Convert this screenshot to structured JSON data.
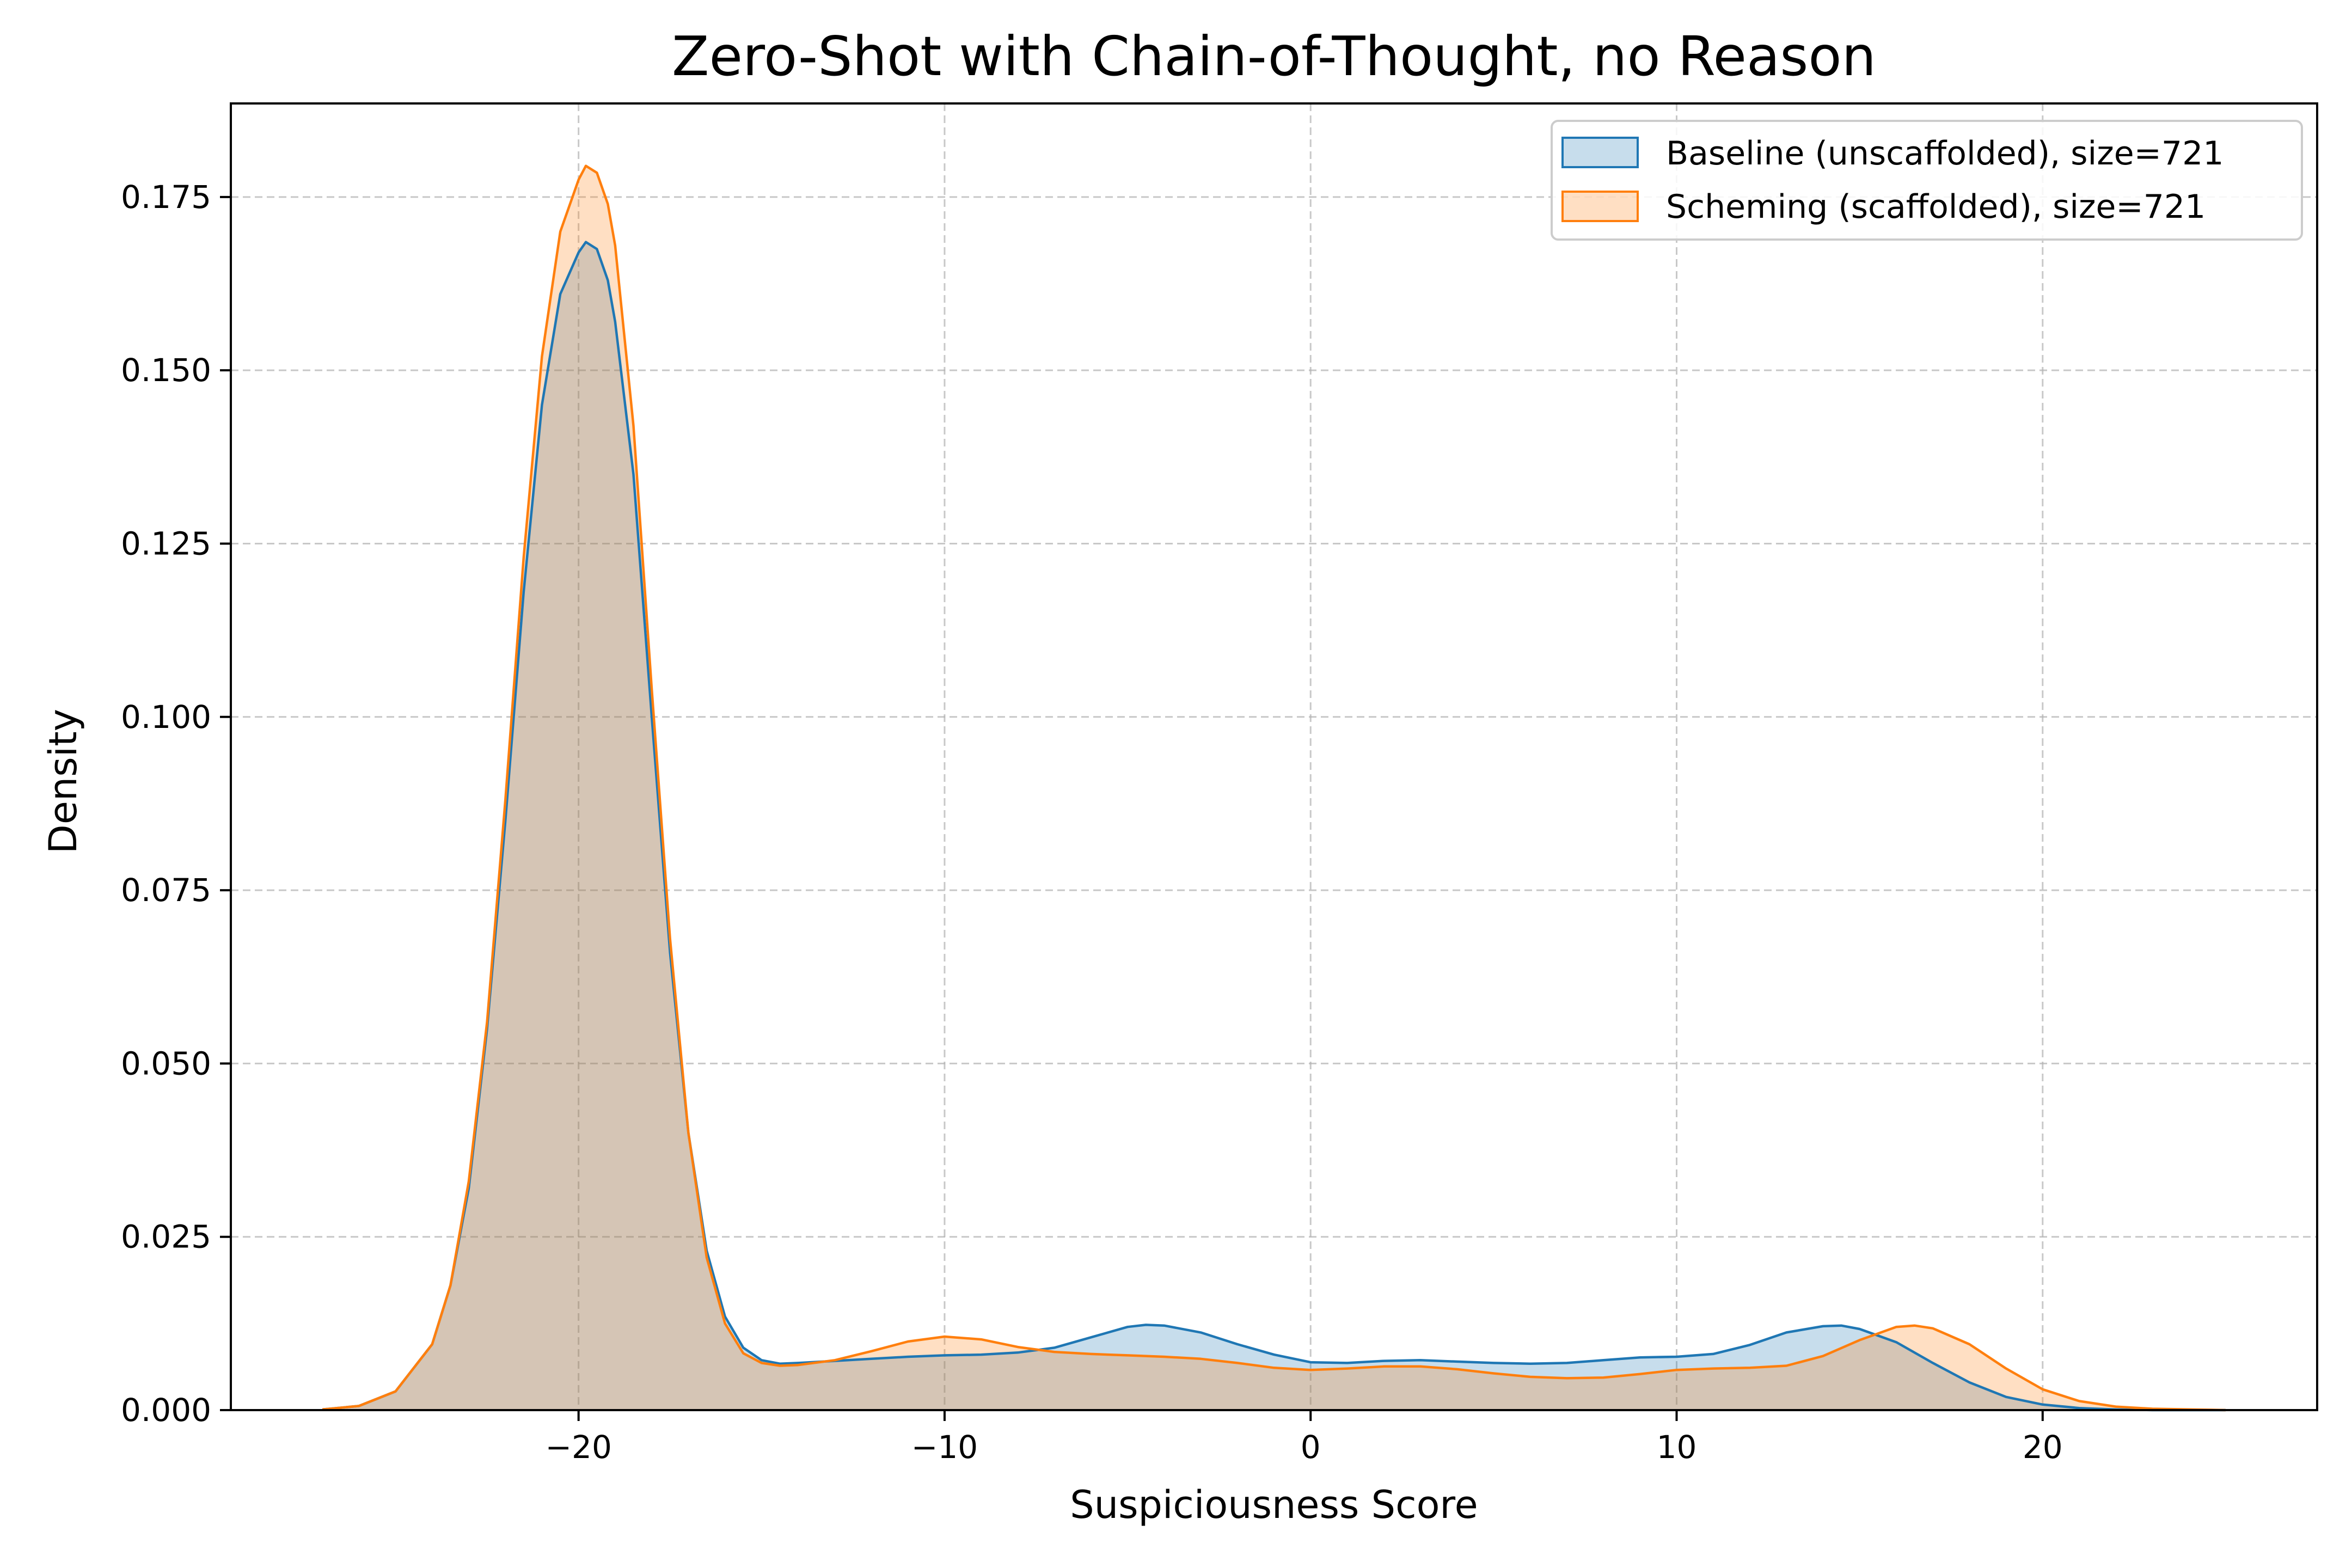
{
  "chart_data": {
    "type": "area",
    "title": "Zero-Shot with Chain-of-Thought, no Reason",
    "xlabel": "Suspiciousness Score",
    "ylabel": "Density",
    "xlim": [
      -29.5,
      27.5
    ],
    "ylim": [
      0,
      0.1885
    ],
    "x_ticks": [
      -20,
      -10,
      0,
      10,
      20
    ],
    "x_tick_labels": [
      "−20",
      "−10",
      "0",
      "10",
      "20"
    ],
    "y_ticks": [
      0,
      0.025,
      0.05,
      0.075,
      0.1,
      0.125,
      0.15,
      0.175
    ],
    "y_tick_labels": [
      "0.000",
      "0.025",
      "0.050",
      "0.075",
      "0.100",
      "0.125",
      "0.150",
      "0.175"
    ],
    "grid": true,
    "legend_position": "top-right",
    "series": [
      {
        "name": "Baseline (unscaffolded), size=721",
        "color": "#1f77b4",
        "x": [
          -27,
          -26,
          -25,
          -24,
          -23.5,
          -23,
          -22.5,
          -22,
          -21.5,
          -21,
          -20.5,
          -20,
          -19.8,
          -19.5,
          -19.2,
          -19,
          -18.5,
          -18,
          -17.5,
          -17,
          -16.5,
          -16,
          -15.5,
          -15,
          -14.5,
          -14,
          -13,
          -12,
          -11,
          -10,
          -9,
          -8,
          -7,
          -6,
          -5,
          -4.5,
          -4,
          -3,
          -2,
          -1,
          0,
          1,
          2,
          3,
          4,
          5,
          6,
          7,
          8,
          9,
          10,
          11,
          12,
          13,
          14,
          14.5,
          15,
          16,
          17,
          18,
          19,
          20,
          21,
          22,
          23,
          24,
          25
        ],
        "y": [
          0.0001,
          0.0006,
          0.0027,
          0.0095,
          0.018,
          0.032,
          0.055,
          0.085,
          0.118,
          0.145,
          0.161,
          0.167,
          0.1685,
          0.1675,
          0.163,
          0.157,
          0.135,
          0.1,
          0.066,
          0.04,
          0.023,
          0.0135,
          0.009,
          0.0072,
          0.0067,
          0.0068,
          0.0071,
          0.0074,
          0.0077,
          0.0079,
          0.008,
          0.0083,
          0.009,
          0.0105,
          0.012,
          0.0123,
          0.0122,
          0.0112,
          0.0095,
          0.008,
          0.0069,
          0.0068,
          0.0071,
          0.0072,
          0.007,
          0.0068,
          0.0067,
          0.0068,
          0.0072,
          0.0076,
          0.0077,
          0.0081,
          0.0094,
          0.0112,
          0.0121,
          0.0122,
          0.0117,
          0.0098,
          0.0068,
          0.004,
          0.0019,
          0.0008,
          0.0003,
          0.0001,
          0,
          0,
          0
        ]
      },
      {
        "name": "Scheming (scaffolded), size=721",
        "color": "#ff7f0e",
        "x": [
          -27,
          -26,
          -25,
          -24,
          -23.5,
          -23,
          -22.5,
          -22,
          -21.5,
          -21,
          -20.5,
          -20,
          -19.8,
          -19.5,
          -19.2,
          -19,
          -18.5,
          -18,
          -17.5,
          -17,
          -16.5,
          -16,
          -15.5,
          -15,
          -14.5,
          -14,
          -13,
          -12,
          -11,
          -10,
          -9,
          -8,
          -7,
          -6,
          -5,
          -4,
          -3,
          -2,
          -1,
          0,
          1,
          2,
          3,
          4,
          5,
          6,
          7,
          8,
          9,
          10,
          11,
          12,
          13,
          14,
          15,
          16,
          16.5,
          17,
          18,
          19,
          20,
          21,
          22,
          23,
          24,
          25
        ],
        "y": [
          0.0001,
          0.0006,
          0.0027,
          0.0095,
          0.018,
          0.033,
          0.056,
          0.088,
          0.123,
          0.152,
          0.17,
          0.1775,
          0.1795,
          0.1785,
          0.174,
          0.168,
          0.142,
          0.104,
          0.068,
          0.04,
          0.022,
          0.0125,
          0.0082,
          0.0068,
          0.0064,
          0.0065,
          0.0072,
          0.0085,
          0.0099,
          0.0106,
          0.0102,
          0.0091,
          0.0084,
          0.0081,
          0.0079,
          0.0077,
          0.0074,
          0.0068,
          0.0061,
          0.0058,
          0.006,
          0.0063,
          0.0063,
          0.0059,
          0.0053,
          0.0048,
          0.0046,
          0.0047,
          0.0052,
          0.0058,
          0.006,
          0.0061,
          0.0064,
          0.0078,
          0.0101,
          0.012,
          0.0122,
          0.0118,
          0.0095,
          0.006,
          0.003,
          0.0013,
          0.0005,
          0.0002,
          0.0001,
          0
        ]
      }
    ]
  }
}
